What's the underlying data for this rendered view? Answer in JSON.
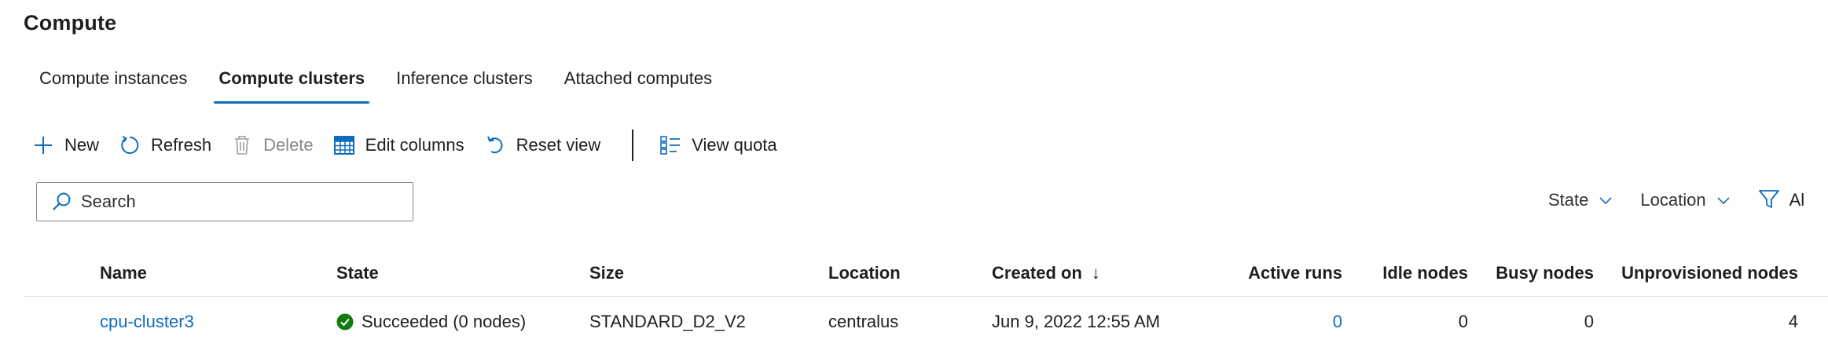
{
  "page": {
    "title": "Compute"
  },
  "tabs": [
    {
      "label": "Compute instances",
      "active": false
    },
    {
      "label": "Compute clusters",
      "active": true
    },
    {
      "label": "Inference clusters",
      "active": false
    },
    {
      "label": "Attached computes",
      "active": false
    }
  ],
  "toolbar": {
    "new_label": "New",
    "refresh_label": "Refresh",
    "delete_label": "Delete",
    "edit_columns_label": "Edit columns",
    "reset_view_label": "Reset view",
    "view_quota_label": "View quota"
  },
  "search": {
    "placeholder": "Search"
  },
  "filters": {
    "state_label": "State",
    "location_label": "Location",
    "all_filters_label": "Al"
  },
  "columns": {
    "name": "Name",
    "state": "State",
    "size": "Size",
    "location": "Location",
    "created_on": "Created on",
    "created_on_sort": "↓",
    "active_runs": "Active runs",
    "idle_nodes": "Idle nodes",
    "busy_nodes": "Busy nodes",
    "unprovisioned_nodes": "Unprovisioned nodes"
  },
  "rows": [
    {
      "name": "cpu-cluster3",
      "state": "Succeeded (0 nodes)",
      "size": "STANDARD_D2_V2",
      "location": "centralus",
      "created_on": "Jun 9, 2022 12:55 AM",
      "active_runs": "0",
      "idle_nodes": "0",
      "busy_nodes": "0",
      "unprovisioned_nodes": "4"
    }
  ],
  "colors": {
    "accent": "#0f6cbd",
    "success": "#107c10",
    "text": "#201f1e",
    "disabled": "#8a8886"
  }
}
